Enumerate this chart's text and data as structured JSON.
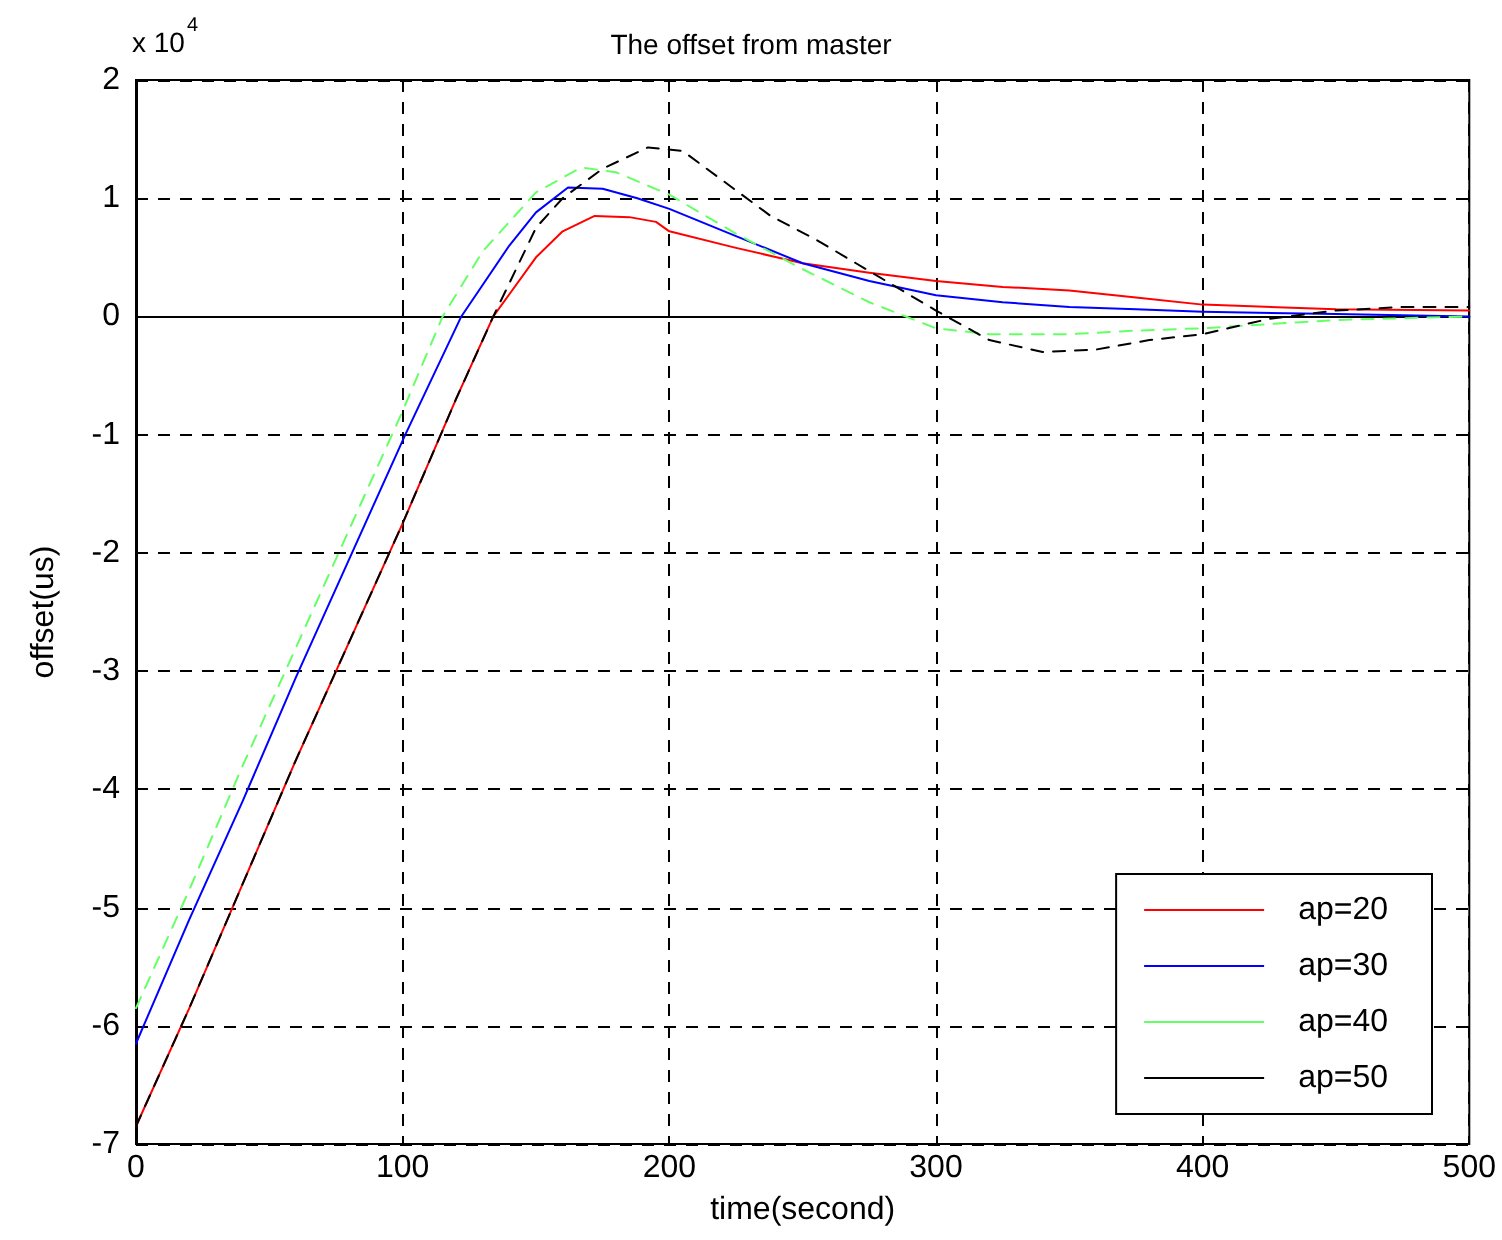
{
  "chart_data": {
    "type": "line",
    "title": "The offset from master",
    "xlabel": "time(second)",
    "ylabel": "offset(us)",
    "annotations": [
      "x 10$^{4}$"
    ],
    "xlim": [
      0,
      500
    ],
    "xticks": [
      0,
      100,
      200,
      300,
      400,
      500
    ],
    "ylim": [
      -7,
      2
    ],
    "yticks": [
      -7,
      -6,
      -5,
      -4,
      -3,
      -2,
      -1,
      0,
      1,
      2
    ],
    "grid": true,
    "legend": "bottom right",
    "marker": "none",
    "series": [
      {
        "name": "ap=20",
        "color": "#ff0000",
        "line_style": "solid",
        "x": [
          0,
          20,
          40,
          60,
          80,
          100,
          120,
          134,
          150,
          160,
          172,
          185,
          195,
          200,
          225,
          250,
          275,
          300,
          325,
          350,
          375,
          400,
          450,
          500
        ],
        "values": [
          -6.85,
          -5.85,
          -4.8,
          -3.75,
          -2.75,
          -1.75,
          -0.7,
          0,
          0.5,
          0.72,
          0.85,
          0.84,
          0.8,
          0.72,
          0.58,
          0.45,
          0.37,
          0.3,
          0.25,
          0.22,
          0.16,
          0.1,
          0.06,
          0.05
        ]
      },
      {
        "name": "ap=30",
        "color": "#0000ff",
        "line_style": "solid",
        "x": [
          0,
          20,
          40,
          60,
          80,
          101,
          122,
          140,
          150,
          162,
          175,
          188,
          200,
          225,
          250,
          275,
          300,
          325,
          350,
          375,
          400,
          450,
          500
        ],
        "values": [
          -6.15,
          -5.1,
          -4.1,
          -3.05,
          -2.05,
          -1,
          0,
          0.6,
          0.88,
          1.09,
          1.08,
          1.0,
          0.91,
          0.68,
          0.45,
          0.3,
          0.18,
          0.12,
          0.08,
          0.06,
          0.04,
          0.02,
          0
        ]
      },
      {
        "name": "ap=40",
        "color": "#66ff66",
        "line_style": "dashed",
        "x": [
          0,
          20,
          40,
          60,
          80,
          100,
          115,
          130,
          150,
          167,
          180,
          200,
          225,
          250,
          275,
          300,
          320,
          350,
          375,
          400,
          450,
          500
        ],
        "values": [
          -5.85,
          -4.85,
          -3.8,
          -2.8,
          -1.8,
          -0.8,
          0,
          0.55,
          1.05,
          1.26,
          1.22,
          1.03,
          0.7,
          0.4,
          0.12,
          -0.1,
          -0.15,
          -0.15,
          -0.12,
          -0.1,
          -0.03,
          0
        ]
      },
      {
        "name": "ap=50",
        "color": "#000000",
        "line_style": "dashed",
        "x": [
          0,
          20,
          40,
          60,
          80,
          100,
          120,
          134,
          150,
          160,
          175,
          192,
          205,
          220,
          238,
          255,
          270,
          285,
          300,
          320,
          340,
          360,
          380,
          400,
          425,
          450,
          475,
          500
        ],
        "values": [
          -6.85,
          -5.85,
          -4.8,
          -3.75,
          -2.75,
          -1.75,
          -0.7,
          0,
          0.75,
          1.0,
          1.25,
          1.43,
          1.4,
          1.15,
          0.85,
          0.65,
          0.45,
          0.25,
          0.05,
          -0.2,
          -0.3,
          -0.28,
          -0.2,
          -0.15,
          -0.02,
          0.05,
          0.08,
          0.08
        ]
      }
    ]
  }
}
